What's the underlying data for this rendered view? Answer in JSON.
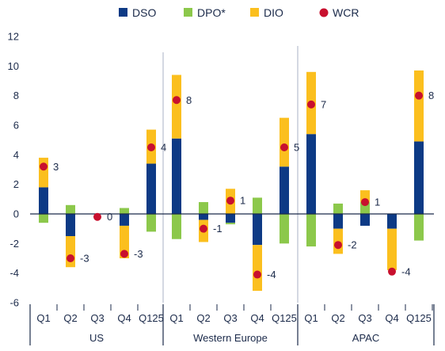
{
  "chart_data": {
    "type": "bar",
    "stacked": true,
    "legend_position": "top",
    "grid": false,
    "ylim": [
      -6,
      12
    ],
    "yticks": [
      -6,
      -4,
      -2,
      0,
      2,
      4,
      6,
      8,
      10,
      12
    ],
    "groups": [
      {
        "name": "US",
        "categories": [
          "Q1",
          "Q2",
          "Q3",
          "Q4",
          "Q125"
        ]
      },
      {
        "name": "Western Europe",
        "categories": [
          "Q1",
          "Q2",
          "Q3",
          "Q4",
          "Q125"
        ]
      },
      {
        "name": "APAC",
        "categories": [
          "Q1",
          "Q2",
          "Q3",
          "Q4",
          "Q125"
        ]
      }
    ],
    "series": [
      {
        "name": "DSO",
        "kind": "bar",
        "color": "#0d3a85",
        "values": [
          1.8,
          -1.5,
          0,
          -0.8,
          3.4,
          5.1,
          -0.4,
          -0.6,
          -2.1,
          3.2,
          5.4,
          -1.0,
          -0.8,
          -1.0,
          4.9
        ]
      },
      {
        "name": "DPO*",
        "kind": "bar",
        "color": "#8cc84b",
        "values": [
          -0.6,
          0.6,
          0,
          0.4,
          -1.2,
          -1.7,
          0.8,
          -0.1,
          1.1,
          -2.0,
          -2.2,
          0.7,
          0.8,
          0,
          -1.8
        ]
      },
      {
        "name": "DIO",
        "kind": "bar",
        "color": "#fbbf1e",
        "values": [
          2.0,
          -2.1,
          0,
          -2.2,
          2.3,
          4.3,
          -1.5,
          1.7,
          -3.1,
          3.3,
          4.2,
          -1.7,
          0.8,
          -2.8,
          4.8
        ]
      },
      {
        "name": "WCR",
        "kind": "marker",
        "color": "#c8102e",
        "values": [
          3.2,
          -3.0,
          -0.2,
          -2.7,
          4.5,
          7.7,
          -1.0,
          0.9,
          -4.1,
          4.5,
          7.4,
          -2.1,
          0.8,
          -3.9,
          8.0
        ],
        "labels": [
          "3",
          "-3",
          "0",
          "-3",
          "4",
          "8",
          "-1",
          "1",
          "-4",
          "5",
          "7",
          "-2",
          "1",
          "-4",
          "8"
        ]
      }
    ]
  }
}
